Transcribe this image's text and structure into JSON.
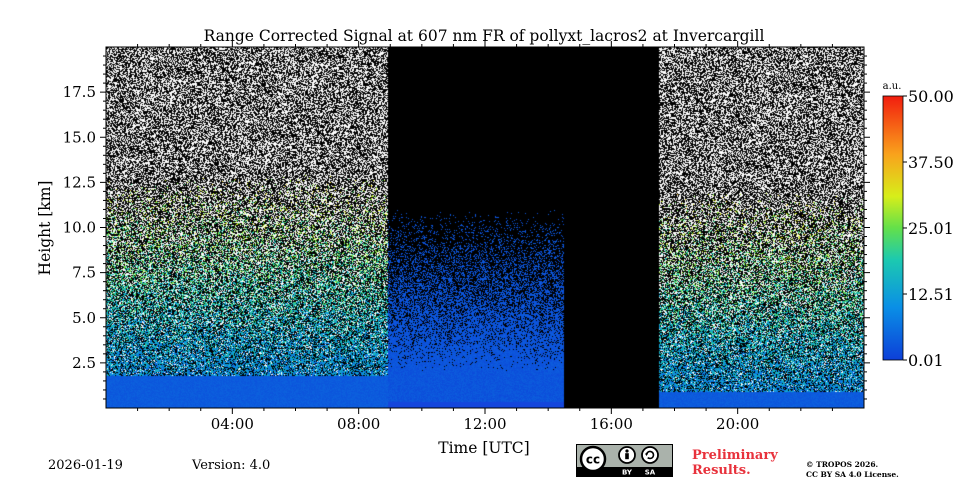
{
  "chart_data": {
    "type": "heatmap",
    "title": "Range Corrected Signal at 607 nm FR of pollyxt_lacros2 at Invercargill",
    "xlabel": "Time [UTC]",
    "ylabel": "Height [km]",
    "xlim_hours": [
      0,
      24
    ],
    "ylim_km": [
      0,
      20
    ],
    "x_ticks": [
      {
        "hour": 4,
        "label": "04:00"
      },
      {
        "hour": 8,
        "label": "08:00"
      },
      {
        "hour": 12,
        "label": "12:00"
      },
      {
        "hour": 16,
        "label": "16:00"
      },
      {
        "hour": 20,
        "label": "20:00"
      }
    ],
    "y_ticks": [
      {
        "km": 2.5,
        "label": "2.5"
      },
      {
        "km": 5.0,
        "label": "5.0"
      },
      {
        "km": 7.5,
        "label": "7.5"
      },
      {
        "km": 10.0,
        "label": "10.0"
      },
      {
        "km": 12.5,
        "label": "12.5"
      },
      {
        "km": 15.0,
        "label": "15.0"
      },
      {
        "km": 17.5,
        "label": "17.5"
      }
    ],
    "colorbar": {
      "unit": "a.u.",
      "min": 0.01,
      "max": 50.0,
      "ticks": [
        {
          "value": 50.0,
          "label": "50.00"
        },
        {
          "value": 37.5,
          "label": "37.50"
        },
        {
          "value": 25.01,
          "label": "25.01"
        },
        {
          "value": 12.51,
          "label": "12.51"
        },
        {
          "value": 0.01,
          "label": "0.01"
        }
      ]
    },
    "regions": [
      {
        "start_hour": 0.0,
        "end_hour": 8.9,
        "condition": "noisy night signal, boundary layer below ~2 km"
      },
      {
        "start_hour": 8.9,
        "end_hour": 14.5,
        "condition": "daytime, strong low-level signal, dark above"
      },
      {
        "start_hour": 14.5,
        "end_hour": 17.5,
        "condition": "no data"
      },
      {
        "start_hour": 17.5,
        "end_hour": 24.0,
        "condition": "noisy night signal, shallow layer below ~1 km"
      }
    ]
  },
  "footer": {
    "date": "2026-01-19",
    "version": "Version: 4.0",
    "preliminary_line1": "Preliminary",
    "preliminary_line2": "Results.",
    "copyright_line1": "© TROPOS 2026.",
    "copyright_line2": "CC BY SA 4.0 License."
  },
  "license_badge": {
    "cc": "cc",
    "by": "BY",
    "sa": "SA"
  }
}
